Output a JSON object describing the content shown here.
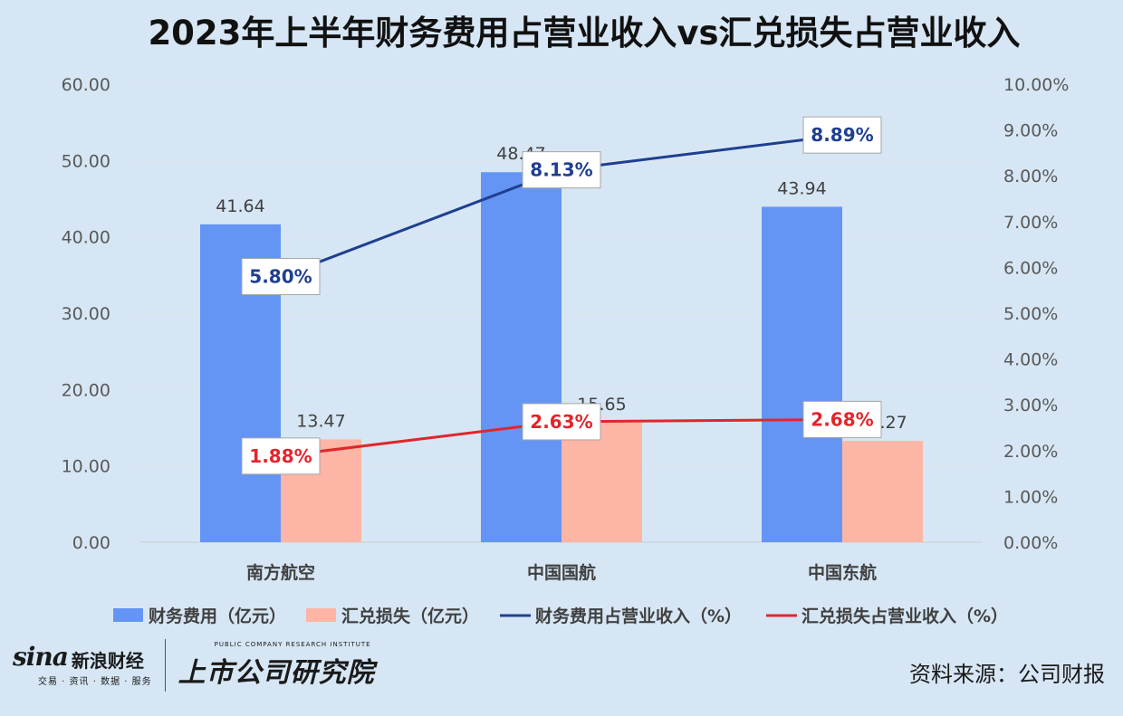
{
  "chart_data": {
    "type": "bar",
    "title": "2023年上半年财务费用占营业收入vs汇兑损失占营业收入",
    "categories": [
      "南方航空",
      "中国国航",
      "中国东航"
    ],
    "y_left": {
      "range": [
        0,
        60
      ],
      "ticks": [
        "0.00",
        "10.00",
        "20.00",
        "30.00",
        "40.00",
        "50.00",
        "60.00"
      ]
    },
    "y_right": {
      "range": [
        0,
        10
      ],
      "ticks": [
        "0.00%",
        "1.00%",
        "2.00%",
        "3.00%",
        "4.00%",
        "5.00%",
        "6.00%",
        "7.00%",
        "8.00%",
        "9.00%",
        "10.00%"
      ]
    },
    "grid": true,
    "legend_position": "bottom",
    "bar_series": [
      {
        "name": "财务费用（亿元）",
        "color": "#6495f5",
        "values": [
          41.64,
          48.47,
          43.94
        ],
        "labels": [
          "41.64",
          "48.47",
          "43.94"
        ]
      },
      {
        "name": "汇兑损失（亿元）",
        "color": "#fdb5a5",
        "values": [
          13.47,
          15.65,
          13.27
        ],
        "labels": [
          "13.47",
          "15.65",
          "13.27"
        ]
      }
    ],
    "line_series": [
      {
        "name": "财务费用占营业收入（%）",
        "color": "#1f3f8f",
        "values": [
          5.8,
          8.13,
          8.89
        ],
        "labels": [
          "5.80%",
          "8.13%",
          "8.89%"
        ]
      },
      {
        "name": "汇兑损失占营业收入（%）",
        "color": "#e0262b",
        "values": [
          1.88,
          2.63,
          2.68
        ],
        "labels": [
          "1.88%",
          "2.63%",
          "2.68%"
        ]
      }
    ]
  },
  "footer": {
    "sina_word": "sina",
    "sina_name": "新浪财经",
    "sina_sub": "交易 · 资讯 · 数据 · 服务",
    "inst_sub": "PUBLIC COMPANY RESEARCH INSTITUTE",
    "inst_name": "上市公司研究院",
    "source": "资料来源：公司财报"
  }
}
